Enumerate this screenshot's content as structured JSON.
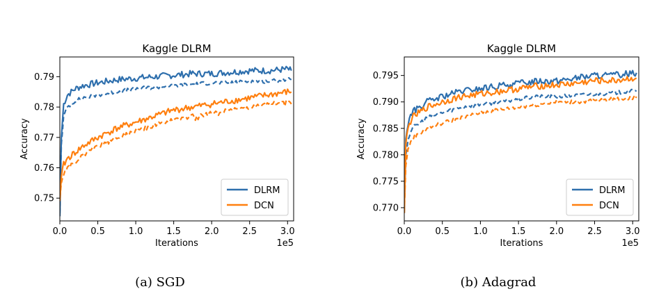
{
  "figures": {
    "sgd_caption": "(a) SGD",
    "adagrad_caption": "(b) Adagrad"
  },
  "chart_data": [
    {
      "type": "line",
      "title": "Kaggle DLRM",
      "xlabel": "Iterations",
      "ylabel": "Accuracy",
      "x_multiplier_label": "1e5",
      "xlim": [
        0,
        3.08
      ],
      "ylim": [
        0.7425,
        0.7965
      ],
      "xticks": [
        0.0,
        0.5,
        1.0,
        1.5,
        2.0,
        2.5,
        3.0
      ],
      "xtick_labels": [
        "0.0",
        "0.5",
        "1.0",
        "1.5",
        "2.0",
        "2.5",
        "3.0"
      ],
      "yticks": [
        0.75,
        0.76,
        0.77,
        0.78,
        0.79
      ],
      "ytick_labels": [
        "0.75",
        "0.76",
        "0.77",
        "0.78",
        "0.79"
      ],
      "legend": {
        "position": "bottom-right",
        "entries": [
          "DLRM",
          "DCN"
        ]
      },
      "series": [
        {
          "name": "DLRM",
          "style": "solid",
          "color": "#2e6fad",
          "x": [
            0.0,
            0.02,
            0.05,
            0.1,
            0.2,
            0.3,
            0.5,
            0.75,
            1.0,
            1.25,
            1.5,
            1.75,
            2.0,
            2.25,
            2.5,
            2.75,
            3.0,
            3.05
          ],
          "y": [
            0.744,
            0.77,
            0.781,
            0.784,
            0.786,
            0.787,
            0.788,
            0.789,
            0.7895,
            0.79,
            0.7905,
            0.791,
            0.791,
            0.7915,
            0.792,
            0.792,
            0.7925,
            0.792
          ]
        },
        {
          "name": "DLRM",
          "style": "dashed",
          "color": "#2e6fad",
          "x": [
            0.0,
            0.02,
            0.05,
            0.1,
            0.2,
            0.3,
            0.5,
            0.75,
            1.0,
            1.25,
            1.5,
            1.75,
            2.0,
            2.25,
            2.5,
            2.75,
            3.0,
            3.05
          ],
          "y": [
            0.745,
            0.768,
            0.777,
            0.78,
            0.782,
            0.783,
            0.784,
            0.785,
            0.786,
            0.7865,
            0.787,
            0.7875,
            0.788,
            0.788,
            0.7885,
            0.7885,
            0.789,
            0.789
          ]
        },
        {
          "name": "DCN",
          "style": "solid",
          "color": "#ff7f0e",
          "x": [
            0.0,
            0.02,
            0.05,
            0.1,
            0.2,
            0.3,
            0.5,
            0.75,
            1.0,
            1.25,
            1.5,
            1.75,
            2.0,
            2.25,
            2.5,
            2.75,
            3.0,
            3.05
          ],
          "y": [
            0.749,
            0.757,
            0.761,
            0.763,
            0.765,
            0.767,
            0.77,
            0.773,
            0.775,
            0.777,
            0.779,
            0.78,
            0.781,
            0.782,
            0.783,
            0.784,
            0.785,
            0.785
          ]
        },
        {
          "name": "DCN",
          "style": "dashed",
          "color": "#ff7f0e",
          "x": [
            0.0,
            0.02,
            0.05,
            0.1,
            0.2,
            0.3,
            0.5,
            0.75,
            1.0,
            1.25,
            1.5,
            1.75,
            2.0,
            2.25,
            2.5,
            2.75,
            3.0,
            3.05
          ],
          "y": [
            0.75,
            0.755,
            0.758,
            0.76,
            0.762,
            0.764,
            0.767,
            0.77,
            0.772,
            0.774,
            0.776,
            0.777,
            0.778,
            0.779,
            0.78,
            0.781,
            0.782,
            0.781
          ]
        }
      ]
    },
    {
      "type": "line",
      "title": "Kaggle DLRM",
      "xlabel": "Iterations",
      "ylabel": "Accuracy",
      "x_multiplier_label": "1e5",
      "xlim": [
        0,
        3.08
      ],
      "ylim": [
        0.7675,
        0.7985
      ],
      "xticks": [
        0.0,
        0.5,
        1.0,
        1.5,
        2.0,
        2.5,
        3.0
      ],
      "xtick_labels": [
        "0.0",
        "0.5",
        "1.0",
        "1.5",
        "2.0",
        "2.5",
        "3.0"
      ],
      "yticks": [
        0.77,
        0.775,
        0.78,
        0.785,
        0.79,
        0.795
      ],
      "ytick_labels": [
        "0.770",
        "0.775",
        "0.780",
        "0.785",
        "0.790",
        "0.795"
      ],
      "legend": {
        "position": "bottom-right",
        "entries": [
          "DLRM",
          "DCN"
        ]
      },
      "series": [
        {
          "name": "DLRM",
          "style": "solid",
          "color": "#2e6fad",
          "x": [
            0.0,
            0.02,
            0.05,
            0.1,
            0.2,
            0.3,
            0.5,
            0.75,
            1.0,
            1.25,
            1.5,
            1.75,
            2.0,
            2.25,
            2.5,
            2.75,
            3.0,
            3.05
          ],
          "y": [
            0.769,
            0.783,
            0.786,
            0.788,
            0.789,
            0.79,
            0.791,
            0.792,
            0.7925,
            0.793,
            0.7935,
            0.794,
            0.794,
            0.7945,
            0.795,
            0.795,
            0.7955,
            0.7955
          ]
        },
        {
          "name": "DLRM",
          "style": "dashed",
          "color": "#2e6fad",
          "x": [
            0.0,
            0.02,
            0.05,
            0.1,
            0.2,
            0.3,
            0.5,
            0.75,
            1.0,
            1.25,
            1.5,
            1.75,
            2.0,
            2.25,
            2.5,
            2.75,
            3.0,
            3.05
          ],
          "y": [
            0.77,
            0.78,
            0.783,
            0.785,
            0.786,
            0.787,
            0.788,
            0.789,
            0.7895,
            0.79,
            0.7905,
            0.791,
            0.791,
            0.7912,
            0.7915,
            0.7917,
            0.792,
            0.792
          ]
        },
        {
          "name": "DCN",
          "style": "solid",
          "color": "#ff7f0e",
          "x": [
            0.0,
            0.02,
            0.05,
            0.1,
            0.2,
            0.3,
            0.5,
            0.75,
            1.0,
            1.25,
            1.5,
            1.75,
            2.0,
            2.25,
            2.5,
            2.75,
            3.0,
            3.05
          ],
          "y": [
            0.769,
            0.782,
            0.785,
            0.787,
            0.788,
            0.789,
            0.79,
            0.791,
            0.7915,
            0.792,
            0.7925,
            0.793,
            0.7932,
            0.7935,
            0.794,
            0.794,
            0.7945,
            0.7945
          ]
        },
        {
          "name": "DCN",
          "style": "dashed",
          "color": "#ff7f0e",
          "x": [
            0.0,
            0.02,
            0.05,
            0.1,
            0.2,
            0.3,
            0.5,
            0.75,
            1.0,
            1.25,
            1.5,
            1.75,
            2.0,
            2.25,
            2.5,
            2.75,
            3.0,
            3.05
          ],
          "y": [
            0.769,
            0.778,
            0.781,
            0.783,
            0.784,
            0.785,
            0.786,
            0.787,
            0.788,
            0.7885,
            0.789,
            0.7895,
            0.79,
            0.79,
            0.7902,
            0.7905,
            0.7907,
            0.791
          ]
        }
      ]
    }
  ]
}
